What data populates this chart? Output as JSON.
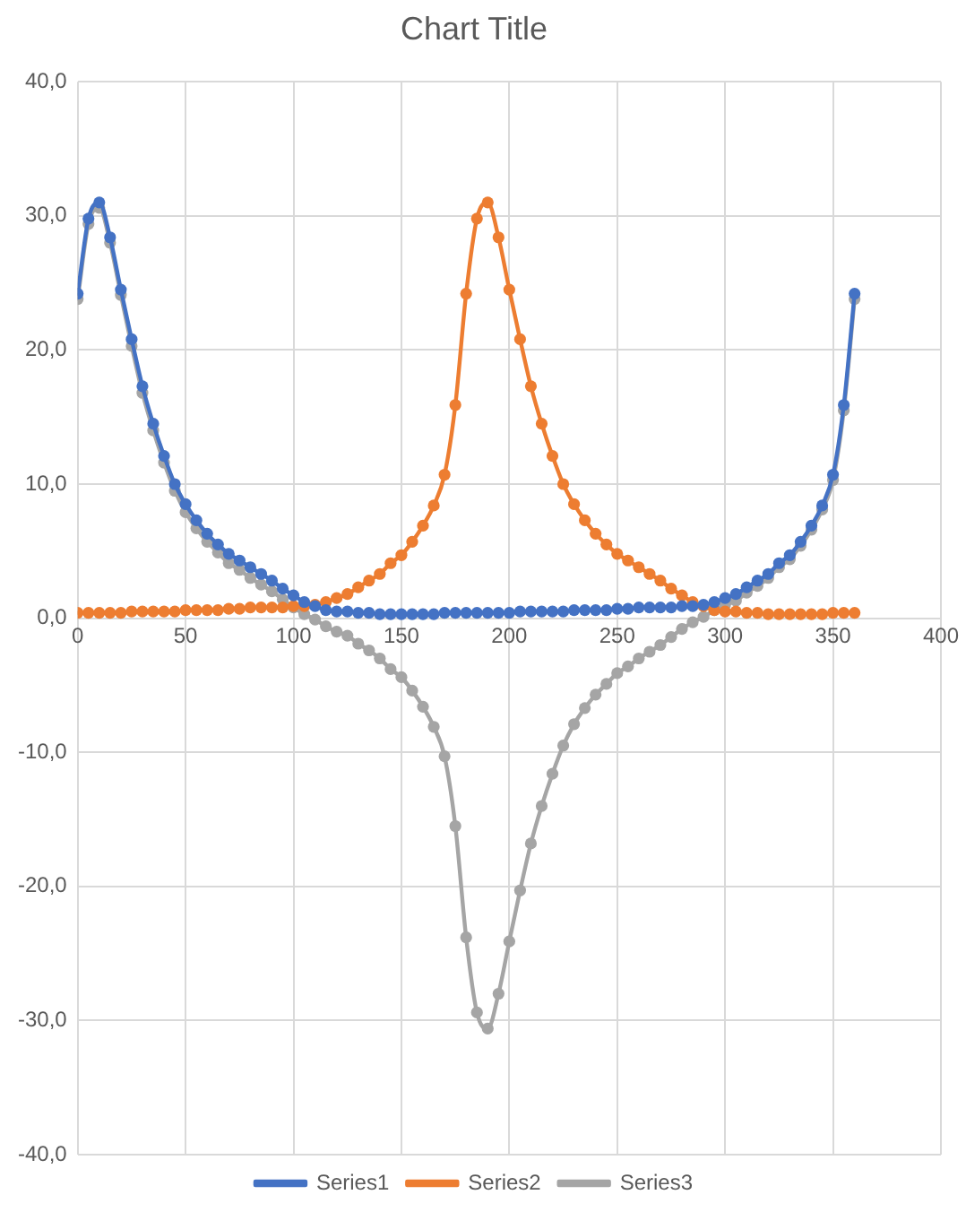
{
  "chart_data": {
    "type": "line",
    "title": "Chart Title",
    "x": [
      0,
      5,
      10,
      15,
      20,
      25,
      30,
      35,
      40,
      45,
      50,
      55,
      60,
      65,
      70,
      75,
      80,
      85,
      90,
      95,
      100,
      105,
      110,
      115,
      120,
      125,
      130,
      135,
      140,
      145,
      150,
      155,
      160,
      165,
      170,
      175,
      180,
      185,
      190,
      195,
      200,
      205,
      210,
      215,
      220,
      225,
      230,
      235,
      240,
      245,
      250,
      255,
      260,
      265,
      270,
      275,
      280,
      285,
      290,
      295,
      300,
      305,
      310,
      315,
      320,
      325,
      330,
      335,
      340,
      345,
      350,
      355,
      360
    ],
    "series": [
      {
        "name": "Series1",
        "color": "#4472c4",
        "values": [
          24.2,
          29.8,
          31.0,
          28.4,
          24.5,
          20.8,
          17.3,
          14.5,
          12.1,
          10.0,
          8.5,
          7.3,
          6.3,
          5.5,
          4.8,
          4.3,
          3.8,
          3.3,
          2.8,
          2.2,
          1.7,
          1.2,
          0.9,
          0.6,
          0.5,
          0.5,
          0.4,
          0.4,
          0.3,
          0.3,
          0.3,
          0.3,
          0.3,
          0.3,
          0.4,
          0.4,
          0.4,
          0.4,
          0.4,
          0.4,
          0.4,
          0.5,
          0.5,
          0.5,
          0.5,
          0.5,
          0.6,
          0.6,
          0.6,
          0.6,
          0.7,
          0.7,
          0.8,
          0.8,
          0.8,
          0.8,
          0.9,
          0.9,
          1.0,
          1.2,
          1.5,
          1.8,
          2.3,
          2.8,
          3.3,
          4.1,
          4.7,
          5.7,
          6.9,
          8.4,
          10.7,
          15.9,
          24.2
        ]
      },
      {
        "name": "Series2",
        "color": "#ed7d31",
        "values": [
          0.4,
          0.4,
          0.4,
          0.4,
          0.4,
          0.5,
          0.5,
          0.5,
          0.5,
          0.5,
          0.6,
          0.6,
          0.6,
          0.6,
          0.7,
          0.7,
          0.8,
          0.8,
          0.8,
          0.8,
          0.9,
          0.9,
          1.0,
          1.2,
          1.5,
          1.8,
          2.3,
          2.8,
          3.3,
          4.1,
          4.7,
          5.7,
          6.9,
          8.4,
          10.7,
          15.9,
          24.2,
          29.8,
          31.0,
          28.4,
          24.5,
          20.8,
          17.3,
          14.5,
          12.1,
          10.0,
          8.5,
          7.3,
          6.3,
          5.5,
          4.8,
          4.3,
          3.8,
          3.3,
          2.8,
          2.2,
          1.7,
          1.2,
          0.9,
          0.6,
          0.5,
          0.5,
          0.4,
          0.4,
          0.3,
          0.3,
          0.3,
          0.3,
          0.3,
          0.3,
          0.4,
          0.4,
          0.4
        ]
      },
      {
        "name": "Series3",
        "color": "#a5a5a5",
        "values": [
          23.8,
          29.4,
          30.6,
          28.0,
          24.1,
          20.3,
          16.8,
          14.0,
          11.6,
          9.5,
          7.9,
          6.7,
          5.7,
          4.9,
          4.1,
          3.6,
          3.0,
          2.5,
          2.0,
          1.4,
          0.8,
          0.3,
          -0.1,
          -0.6,
          -1.0,
          -1.3,
          -1.9,
          -2.4,
          -3.0,
          -3.8,
          -4.4,
          -5.4,
          -6.6,
          -8.1,
          -10.3,
          -15.5,
          -23.8,
          -29.4,
          -30.6,
          -28.0,
          -24.1,
          -20.3,
          -16.8,
          -14.0,
          -11.6,
          -9.5,
          -7.9,
          -6.7,
          -5.7,
          -4.9,
          -4.1,
          -3.6,
          -3.0,
          -2.5,
          -2.0,
          -1.4,
          -0.8,
          -0.3,
          0.1,
          0.6,
          1.0,
          1.3,
          1.9,
          2.4,
          3.0,
          3.8,
          4.4,
          5.4,
          6.6,
          8.1,
          10.3,
          15.5,
          23.8
        ]
      }
    ],
    "xlim": [
      0,
      400
    ],
    "xticks": [
      0,
      50,
      100,
      150,
      200,
      250,
      300,
      350,
      400
    ],
    "ylim": [
      -40,
      40
    ],
    "yticks": [
      {
        "value": -40,
        "label": "-40,0"
      },
      {
        "value": -30,
        "label": "-30,0"
      },
      {
        "value": -20,
        "label": "-20,0"
      },
      {
        "value": -10,
        "label": "-10,0"
      },
      {
        "value": 0,
        "label": "0,0"
      },
      {
        "value": 10,
        "label": "10,0"
      },
      {
        "value": 20,
        "label": "20,0"
      },
      {
        "value": 30,
        "label": "30,0"
      },
      {
        "value": 40,
        "label": "40,0"
      }
    ],
    "grid": true,
    "legend": "bottom",
    "marker": "circle",
    "line_style": "solid"
  }
}
